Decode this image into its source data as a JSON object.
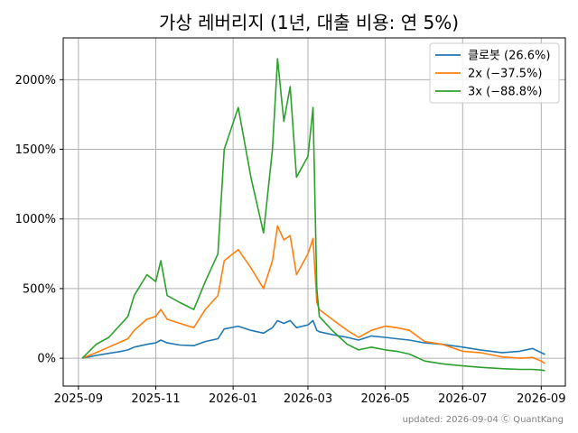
{
  "chart_data": {
    "type": "line",
    "title": "가상 레버리지 (1년, 대출 비용: 연 5%)",
    "xlabel": "",
    "ylabel": "",
    "x_ticks": [
      "2025-09",
      "2025-11",
      "2026-01",
      "2026-03",
      "2026-05",
      "2026-07",
      "2026-09"
    ],
    "y_ticks": [
      "0%",
      "500%",
      "1000%",
      "1500%",
      "2000%"
    ],
    "ylim": [
      -200,
      2300
    ],
    "grid": true,
    "legend_position": "top-right",
    "series": [
      {
        "name": "클로봇 (26.6%)",
        "color": "#1f77b4",
        "points": [
          [
            "2025-09-04",
            0
          ],
          [
            "2025-09-15",
            20
          ],
          [
            "2025-09-25",
            35
          ],
          [
            "2025-10-05",
            50
          ],
          [
            "2025-10-10",
            60
          ],
          [
            "2025-10-15",
            80
          ],
          [
            "2025-10-25",
            100
          ],
          [
            "2025-11-01",
            110
          ],
          [
            "2025-11-05",
            130
          ],
          [
            "2025-11-10",
            110
          ],
          [
            "2025-11-20",
            95
          ],
          [
            "2025-12-01",
            90
          ],
          [
            "2025-12-10",
            120
          ],
          [
            "2025-12-20",
            140
          ],
          [
            "2025-12-25",
            210
          ],
          [
            "2026-01-05",
            230
          ],
          [
            "2026-01-15",
            200
          ],
          [
            "2026-01-25",
            180
          ],
          [
            "2026-02-01",
            220
          ],
          [
            "2026-02-05",
            270
          ],
          [
            "2026-02-10",
            250
          ],
          [
            "2026-02-15",
            270
          ],
          [
            "2026-02-20",
            220
          ],
          [
            "2026-03-01",
            240
          ],
          [
            "2026-03-05",
            270
          ],
          [
            "2026-03-08",
            200
          ],
          [
            "2026-03-10",
            190
          ],
          [
            "2026-03-20",
            170
          ],
          [
            "2026-04-01",
            150
          ],
          [
            "2026-04-10",
            130
          ],
          [
            "2026-04-20",
            160
          ],
          [
            "2026-05-01",
            150
          ],
          [
            "2026-05-10",
            140
          ],
          [
            "2026-05-20",
            130
          ],
          [
            "2026-06-01",
            110
          ],
          [
            "2026-06-15",
            100
          ],
          [
            "2026-07-01",
            80
          ],
          [
            "2026-07-15",
            60
          ],
          [
            "2026-08-01",
            40
          ],
          [
            "2026-08-15",
            50
          ],
          [
            "2026-08-25",
            70
          ],
          [
            "2026-09-01",
            40
          ],
          [
            "2026-09-04",
            26.6
          ]
        ]
      },
      {
        "name": "2x (−37.5%)",
        "color": "#ff7f0e",
        "points": [
          [
            "2025-09-04",
            0
          ],
          [
            "2025-09-15",
            40
          ],
          [
            "2025-09-25",
            80
          ],
          [
            "2025-10-05",
            120
          ],
          [
            "2025-10-10",
            140
          ],
          [
            "2025-10-15",
            200
          ],
          [
            "2025-10-25",
            280
          ],
          [
            "2025-11-01",
            300
          ],
          [
            "2025-11-05",
            350
          ],
          [
            "2025-11-10",
            280
          ],
          [
            "2025-11-20",
            250
          ],
          [
            "2025-12-01",
            220
          ],
          [
            "2025-12-10",
            350
          ],
          [
            "2025-12-20",
            450
          ],
          [
            "2025-12-25",
            700
          ],
          [
            "2026-01-05",
            780
          ],
          [
            "2026-01-15",
            650
          ],
          [
            "2026-01-25",
            500
          ],
          [
            "2026-02-01",
            700
          ],
          [
            "2026-02-05",
            950
          ],
          [
            "2026-02-10",
            850
          ],
          [
            "2026-02-15",
            880
          ],
          [
            "2026-02-20",
            600
          ],
          [
            "2026-03-01",
            750
          ],
          [
            "2026-03-05",
            860
          ],
          [
            "2026-03-08",
            400
          ],
          [
            "2026-03-10",
            350
          ],
          [
            "2026-03-20",
            280
          ],
          [
            "2026-04-01",
            200
          ],
          [
            "2026-04-10",
            150
          ],
          [
            "2026-04-20",
            200
          ],
          [
            "2026-05-01",
            230
          ],
          [
            "2026-05-10",
            220
          ],
          [
            "2026-05-20",
            200
          ],
          [
            "2026-06-01",
            120
          ],
          [
            "2026-06-15",
            100
          ],
          [
            "2026-07-01",
            50
          ],
          [
            "2026-07-15",
            40
          ],
          [
            "2026-08-01",
            10
          ],
          [
            "2026-08-15",
            0
          ],
          [
            "2026-08-25",
            5
          ],
          [
            "2026-09-01",
            -20
          ],
          [
            "2026-09-04",
            -37.5
          ]
        ]
      },
      {
        "name": "3x (−88.8%)",
        "color": "#2ca02c",
        "points": [
          [
            "2025-09-04",
            0
          ],
          [
            "2025-09-15",
            100
          ],
          [
            "2025-09-25",
            150
          ],
          [
            "2025-10-05",
            250
          ],
          [
            "2025-10-10",
            300
          ],
          [
            "2025-10-15",
            450
          ],
          [
            "2025-10-25",
            600
          ],
          [
            "2025-11-01",
            550
          ],
          [
            "2025-11-05",
            700
          ],
          [
            "2025-11-10",
            450
          ],
          [
            "2025-11-20",
            400
          ],
          [
            "2025-12-01",
            350
          ],
          [
            "2025-12-10",
            550
          ],
          [
            "2025-12-20",
            750
          ],
          [
            "2025-12-25",
            1500
          ],
          [
            "2026-01-05",
            1800
          ],
          [
            "2026-01-15",
            1300
          ],
          [
            "2026-01-25",
            900
          ],
          [
            "2026-02-01",
            1500
          ],
          [
            "2026-02-05",
            2150
          ],
          [
            "2026-02-10",
            1700
          ],
          [
            "2026-02-15",
            1950
          ],
          [
            "2026-02-20",
            1300
          ],
          [
            "2026-03-01",
            1450
          ],
          [
            "2026-03-05",
            1800
          ],
          [
            "2026-03-08",
            500
          ],
          [
            "2026-03-10",
            300
          ],
          [
            "2026-03-20",
            200
          ],
          [
            "2026-04-01",
            100
          ],
          [
            "2026-04-10",
            60
          ],
          [
            "2026-04-20",
            80
          ],
          [
            "2026-05-01",
            60
          ],
          [
            "2026-05-10",
            50
          ],
          [
            "2026-05-20",
            30
          ],
          [
            "2026-06-01",
            -20
          ],
          [
            "2026-06-15",
            -40
          ],
          [
            "2026-07-01",
            -55
          ],
          [
            "2026-07-15",
            -65
          ],
          [
            "2026-08-01",
            -75
          ],
          [
            "2026-08-15",
            -80
          ],
          [
            "2026-08-25",
            -80
          ],
          [
            "2026-09-01",
            -85
          ],
          [
            "2026-09-04",
            -88.8
          ]
        ]
      }
    ]
  },
  "footer": "updated: 2026-09-04 Ⓒ QuantKang"
}
